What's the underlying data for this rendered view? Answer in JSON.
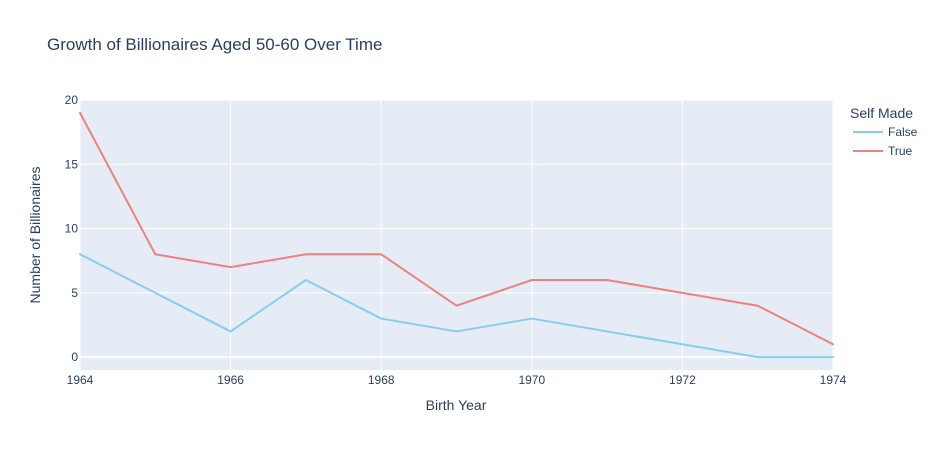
{
  "chart_data": {
    "type": "line",
    "title": "Growth of Billionaires Aged 50-60 Over Time",
    "xlabel": "Birth Year",
    "ylabel": "Number of Billionaires",
    "x": [
      1964,
      1965,
      1966,
      1967,
      1968,
      1969,
      1970,
      1971,
      1972,
      1973,
      1974
    ],
    "xlim": [
      1964,
      1974
    ],
    "ylim": [
      -1,
      20
    ],
    "xticks": [
      1964,
      1966,
      1968,
      1970,
      1972,
      1974
    ],
    "yticks": [
      0,
      5,
      10,
      15,
      20
    ],
    "grid": true,
    "legend": {
      "title": "Self Made",
      "placement": "top-right"
    },
    "series": [
      {
        "name": "False",
        "color": "#87ceeb",
        "values": [
          8,
          5,
          2,
          6,
          3,
          2,
          3,
          2,
          1,
          0,
          0
        ]
      },
      {
        "name": "True",
        "color": "#f08080",
        "values": [
          19,
          8,
          7,
          8,
          8,
          4,
          6,
          6,
          5,
          4,
          1
        ]
      }
    ]
  },
  "colors": {
    "plot_background": "#e5ecf6",
    "grid": "#ffffff",
    "text": "#2a3f5f"
  }
}
